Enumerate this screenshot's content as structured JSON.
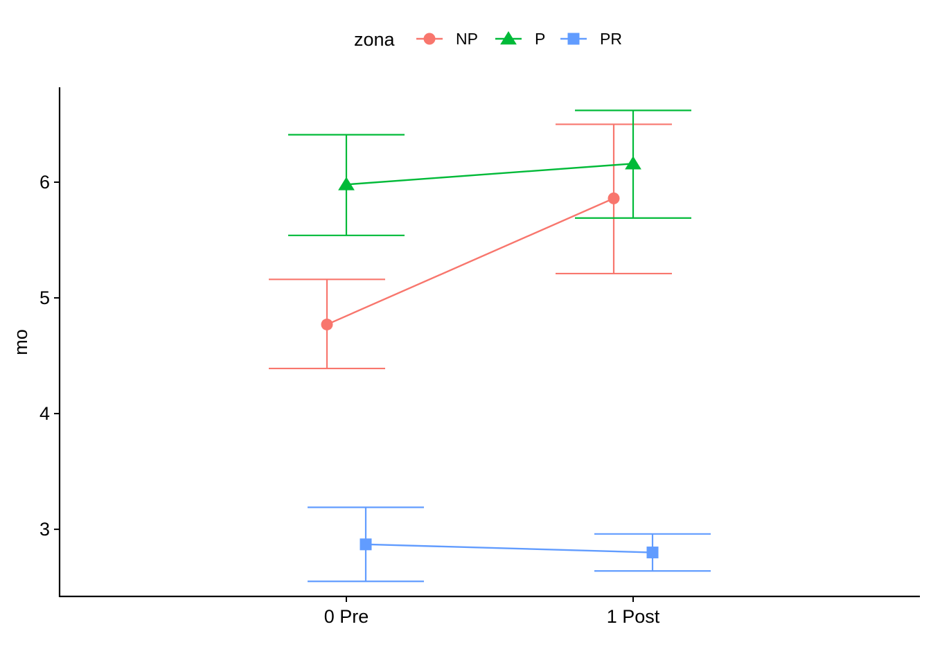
{
  "chart_data": {
    "type": "line",
    "title": "",
    "xlabel": "",
    "ylabel": "mo",
    "categories": [
      "0 Pre",
      "1 Post"
    ],
    "ylim": [
      2.42,
      6.82
    ],
    "y_ticks": [
      3,
      4,
      5,
      6
    ],
    "grid": false,
    "legend": {
      "title": "zona",
      "placement": "top"
    },
    "series": [
      {
        "name": "NP",
        "color": "#F8766D",
        "marker": "circle",
        "values": [
          4.77,
          5.86
        ],
        "lower": [
          4.39,
          5.21
        ],
        "upper": [
          5.16,
          6.5
        ]
      },
      {
        "name": "P",
        "color": "#00BA38",
        "marker": "triangle",
        "values": [
          5.98,
          6.16
        ],
        "lower": [
          5.54,
          5.69
        ],
        "upper": [
          6.41,
          6.62
        ]
      },
      {
        "name": "PR",
        "color": "#619CFF",
        "marker": "square",
        "values": [
          2.87,
          2.8
        ],
        "lower": [
          2.55,
          2.64
        ],
        "upper": [
          3.19,
          2.96
        ]
      }
    ]
  }
}
